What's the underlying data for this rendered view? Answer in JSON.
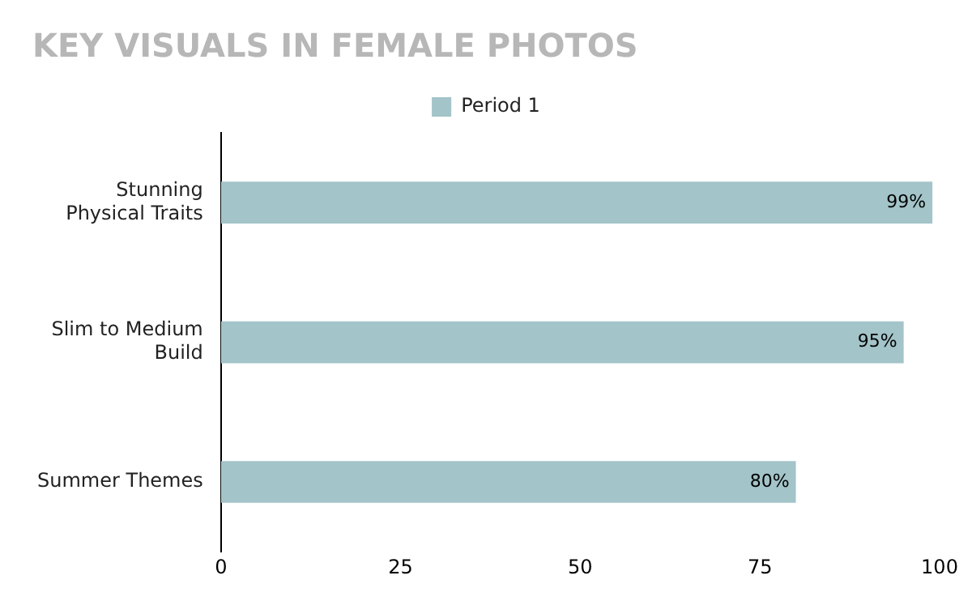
{
  "chart_data": {
    "type": "bar",
    "orientation": "horizontal",
    "title": "KEY VISUALS IN FEMALE PHOTOS",
    "categories": [
      "Stunning Physical Traits",
      "Slim to Medium Build",
      "Summer Themes"
    ],
    "series": [
      {
        "name": "Period 1",
        "color": "#a3c4c9",
        "values": [
          99,
          95,
          80
        ],
        "value_labels": [
          "99%",
          "95%",
          "80%"
        ]
      }
    ],
    "xlim": [
      0,
      100
    ],
    "xticks": [
      0,
      25,
      50,
      75,
      100
    ],
    "grid": false,
    "legend": "top"
  }
}
